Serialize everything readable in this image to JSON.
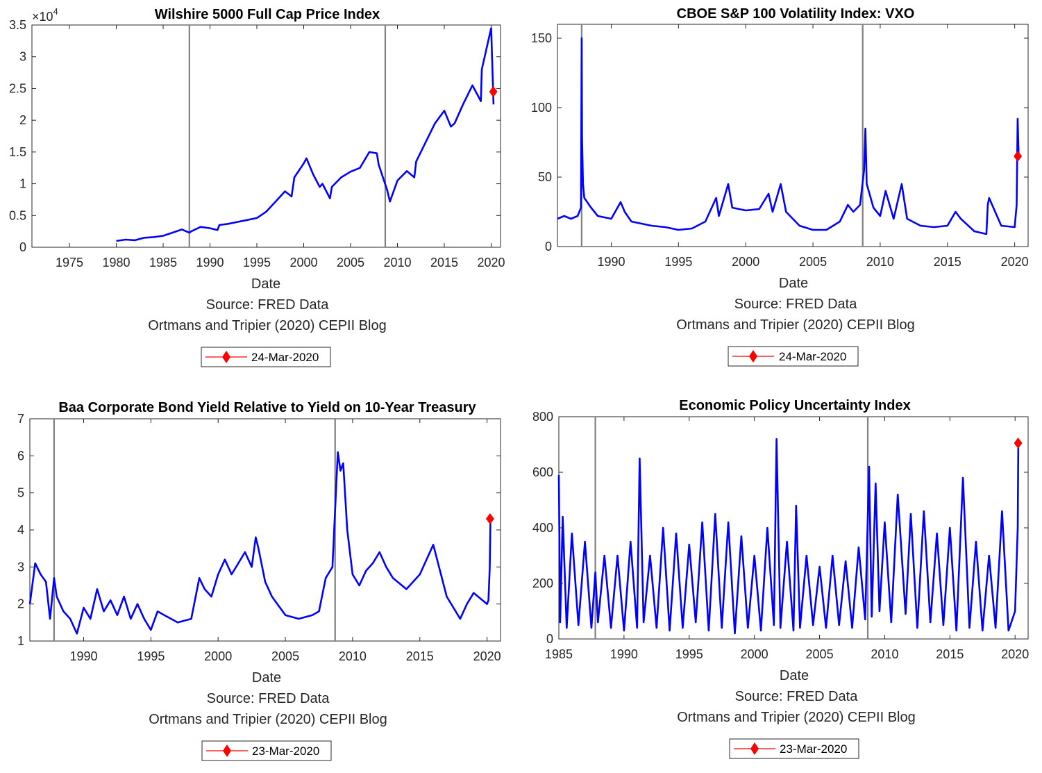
{
  "chart_data": [
    {
      "type": "line",
      "title": "Wilshire 5000 Full Cap Price Index",
      "xlabel": "Date",
      "source_line": "Source: FRED Data",
      "credit_line": "Ortmans and Tripier (2020) CEPII Blog",
      "xlim": [
        1971,
        2021
      ],
      "ylim": [
        0,
        35000
      ],
      "x_ticks": [
        1975,
        1980,
        1985,
        1990,
        1995,
        2000,
        2005,
        2010,
        2015,
        2020
      ],
      "y_ticks": [
        0,
        0.5,
        1,
        1.5,
        2,
        2.5,
        3,
        3.5
      ],
      "y_multiplier_base": "×10",
      "y_multiplier_exp": "4",
      "vlines": [
        1987.8,
        2008.7
      ],
      "series": [
        {
          "color": "#0000ff",
          "x": [
            1980,
            1981,
            1982,
            1983,
            1984,
            1985,
            1986,
            1987,
            1987.8,
            1988,
            1989,
            1990,
            1990.8,
            1991,
            1992,
            1993,
            1994,
            1995,
            1996,
            1997,
            1998,
            1998.7,
            1999,
            2000,
            2000.3,
            2001,
            2001.7,
            2002,
            2002.8,
            2003,
            2004,
            2005,
            2006,
            2007,
            2007.8,
            2008,
            2008.9,
            2009.2,
            2010,
            2011,
            2011.8,
            2012,
            2013,
            2014,
            2015,
            2015.7,
            2016.1,
            2017,
            2018,
            2018.9,
            2019,
            2020.0,
            2020.1,
            2020.25
          ],
          "y": [
            1000,
            1200,
            1100,
            1500,
            1600,
            1800,
            2300,
            2800,
            2300,
            2500,
            3200,
            3000,
            2700,
            3500,
            3700,
            4000,
            4300,
            4600,
            5600,
            7200,
            8800,
            8000,
            11000,
            13200,
            14000,
            11500,
            9500,
            10000,
            7700,
            9500,
            11000,
            11900,
            12500,
            15000,
            14800,
            13000,
            9000,
            7200,
            10500,
            12000,
            11000,
            13500,
            16500,
            19500,
            21500,
            19000,
            19500,
            22500,
            25500,
            23000,
            28000,
            34500,
            30000,
            22500
          ]
        }
      ],
      "marker": {
        "x": 2020.23,
        "y": 24500,
        "color": "#ff0000",
        "legend_label": "24-Mar-2020"
      }
    },
    {
      "type": "line",
      "title": "CBOE S&P 100 Volatility Index: VXO",
      "xlabel": "Date",
      "source_line": "Source: FRED Data",
      "credit_line": "Ortmans and Tripier (2020) CEPII Blog",
      "xlim": [
        1986,
        2021
      ],
      "ylim": [
        0,
        160
      ],
      "x_ticks": [
        1990,
        1995,
        2000,
        2005,
        2010,
        2015,
        2020
      ],
      "y_ticks": [
        0,
        50,
        100,
        150
      ],
      "vlines": [
        1987.8,
        2008.7
      ],
      "series": [
        {
          "color": "#0000ff",
          "x": [
            1986,
            1986.5,
            1987,
            1987.5,
            1987.75,
            1987.8,
            1987.83,
            1987.9,
            1988,
            1988.5,
            1989,
            1990,
            1990.7,
            1991,
            1991.5,
            1992,
            1993,
            1994,
            1995,
            1996,
            1997,
            1997.8,
            1998,
            1998.7,
            1999,
            2000,
            2001,
            2001.7,
            2002,
            2002.6,
            2003,
            2004,
            2005,
            2006,
            2007,
            2007.6,
            2008,
            2008.5,
            2008.8,
            2008.9,
            2009,
            2009.5,
            2010,
            2010.4,
            2011,
            2011.6,
            2012,
            2013,
            2014,
            2015,
            2015.6,
            2016,
            2017,
            2017.9,
            2018,
            2018.1,
            2019,
            2020,
            2020.15,
            2020.22,
            2020.3
          ],
          "y": [
            20,
            22,
            20,
            22,
            28,
            150,
            80,
            45,
            35,
            28,
            22,
            20,
            32,
            25,
            18,
            17,
            15,
            14,
            12,
            13,
            18,
            35,
            22,
            45,
            28,
            26,
            27,
            38,
            25,
            45,
            25,
            15,
            12,
            12,
            18,
            30,
            25,
            30,
            55,
            85,
            45,
            28,
            22,
            40,
            20,
            45,
            20,
            15,
            14,
            15,
            25,
            20,
            11,
            9,
            30,
            35,
            15,
            14,
            30,
            92,
            65
          ]
        }
      ],
      "marker": {
        "x": 2020.23,
        "y": 65,
        "color": "#ff0000",
        "legend_label": "24-Mar-2020"
      }
    },
    {
      "type": "line",
      "title": "Baa Corporate Bond Yield Relative to Yield on 10-Year Treasury",
      "xlabel": "Date",
      "source_line": "Source: FRED Data",
      "credit_line": "Ortmans and Tripier (2020) CEPII Blog",
      "xlim": [
        1986,
        2021
      ],
      "ylim": [
        1,
        7
      ],
      "x_ticks": [
        1990,
        1995,
        2000,
        2005,
        2010,
        2015,
        2020
      ],
      "y_ticks": [
        1,
        2,
        3,
        4,
        5,
        6,
        7
      ],
      "vlines": [
        1987.8,
        2008.7
      ],
      "series": [
        {
          "color": "#0000ff",
          "x": [
            1986,
            1986.4,
            1986.8,
            1987.2,
            1987.5,
            1987.8,
            1988,
            1988.5,
            1989,
            1989.5,
            1990,
            1990.5,
            1991,
            1991.5,
            1992,
            1992.5,
            1993,
            1993.5,
            1994,
            1994.5,
            1995,
            1995.5,
            1996,
            1997,
            1998,
            1998.6,
            1999,
            1999.5,
            2000,
            2000.5,
            2001,
            2001.5,
            2002,
            2002.5,
            2002.8,
            2003,
            2003.5,
            2004,
            2005,
            2006,
            2007,
            2007.5,
            2008,
            2008.5,
            2008.9,
            2009.1,
            2009.3,
            2009.6,
            2010,
            2010.5,
            2011,
            2011.5,
            2012,
            2012.5,
            2013,
            2014,
            2015,
            2016,
            2016.5,
            2017,
            2018,
            2018.5,
            2019,
            2020.0,
            2020.1,
            2020.2,
            2020.25
          ],
          "y": [
            2.0,
            3.1,
            2.8,
            2.6,
            1.6,
            2.7,
            2.2,
            1.8,
            1.6,
            1.2,
            1.9,
            1.6,
            2.4,
            1.8,
            2.1,
            1.7,
            2.2,
            1.6,
            2.0,
            1.6,
            1.3,
            1.8,
            1.7,
            1.5,
            1.6,
            2.7,
            2.4,
            2.2,
            2.8,
            3.2,
            2.8,
            3.1,
            3.4,
            3.0,
            3.8,
            3.5,
            2.6,
            2.2,
            1.7,
            1.6,
            1.7,
            1.8,
            2.7,
            3.0,
            6.1,
            5.6,
            5.8,
            4.0,
            2.8,
            2.5,
            2.9,
            3.1,
            3.4,
            3.0,
            2.7,
            2.4,
            2.8,
            3.6,
            2.9,
            2.2,
            1.6,
            2.0,
            2.3,
            2.0,
            2.1,
            3.0,
            4.3
          ]
        }
      ],
      "marker": {
        "x": 2020.22,
        "y": 4.3,
        "color": "#ff0000",
        "legend_label": "23-Mar-2020"
      }
    },
    {
      "type": "line",
      "title": "Economic Policy Uncertainty Index",
      "xlabel": "Date",
      "source_line": "Source: FRED Data",
      "credit_line": "Ortmans and Tripier (2020) CEPII Blog",
      "xlim": [
        1985,
        2021
      ],
      "ylim": [
        0,
        800
      ],
      "x_ticks": [
        1985,
        1990,
        1995,
        2000,
        2005,
        2010,
        2015,
        2020
      ],
      "y_ticks": [
        0,
        200,
        400,
        600,
        800
      ],
      "vlines": [
        1987.8,
        2008.7
      ],
      "series": [
        {
          "color": "#0000ff",
          "x": [
            1985,
            1985.1,
            1985.3,
            1985.6,
            1986,
            1986.5,
            1987,
            1987.5,
            1987.8,
            1988,
            1988.5,
            1989,
            1989.5,
            1990,
            1990.5,
            1991,
            1991.2,
            1991.5,
            1992,
            1992.5,
            1993,
            1993.5,
            1994,
            1994.5,
            1995,
            1995.5,
            1996,
            1996.5,
            1997,
            1997.5,
            1998,
            1998.5,
            1999,
            1999.5,
            2000,
            2000.5,
            2001,
            2001.5,
            2001.7,
            2002,
            2002.5,
            2003,
            2003.2,
            2003.5,
            2004,
            2004.5,
            2005,
            2005.5,
            2006,
            2006.5,
            2007,
            2007.5,
            2008,
            2008.5,
            2008.8,
            2009,
            2009.3,
            2009.6,
            2010,
            2010.5,
            2011,
            2011.6,
            2012,
            2012.5,
            2013,
            2013.5,
            2014,
            2014.5,
            2015,
            2015.5,
            2016,
            2016.5,
            2017,
            2017.5,
            2018,
            2018.5,
            2019,
            2019.5,
            2020.0,
            2020.1,
            2020.2,
            2020.25
          ],
          "y": [
            590,
            60,
            440,
            40,
            380,
            50,
            350,
            40,
            240,
            60,
            300,
            40,
            300,
            30,
            350,
            40,
            650,
            60,
            300,
            40,
            400,
            30,
            380,
            40,
            340,
            60,
            420,
            30,
            450,
            40,
            420,
            20,
            370,
            40,
            300,
            30,
            400,
            50,
            720,
            40,
            350,
            30,
            480,
            40,
            300,
            50,
            260,
            40,
            300,
            50,
            280,
            40,
            330,
            70,
            620,
            80,
            560,
            100,
            420,
            60,
            520,
            90,
            450,
            40,
            460,
            60,
            380,
            50,
            400,
            30,
            580,
            40,
            350,
            30,
            300,
            40,
            460,
            30,
            100,
            250,
            400,
            710
          ]
        }
      ],
      "marker": {
        "x": 2020.23,
        "y": 705,
        "color": "#ff0000",
        "legend_label": "23-Mar-2020"
      }
    }
  ]
}
